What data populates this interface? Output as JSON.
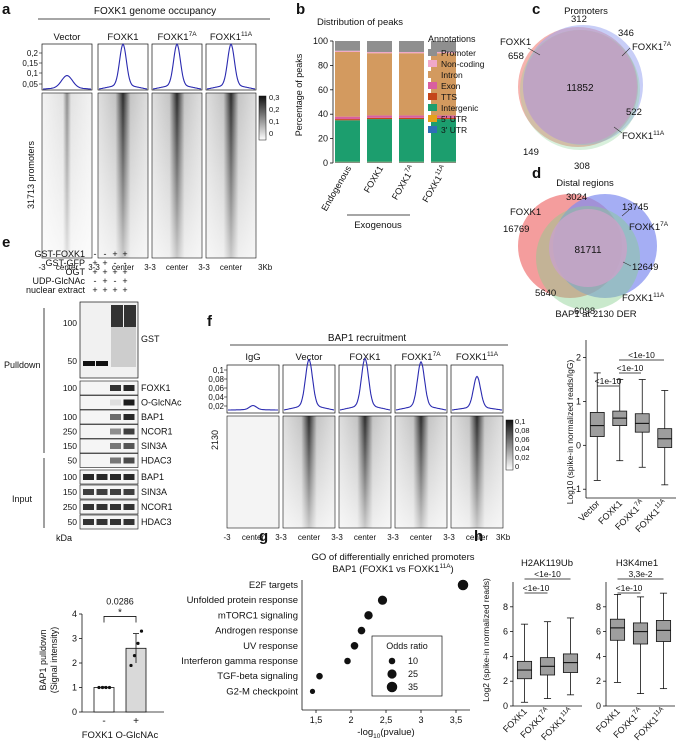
{
  "panels": {
    "a": {
      "letter": "a",
      "title": "FOXK1 genome occupancy",
      "conditions": [
        "Vector",
        "FOXK1",
        "FOXK1",
        "FOXK1"
      ],
      "condition_sups": [
        "",
        "",
        "7A",
        "11A"
      ],
      "profile_yticks": [
        "0,2",
        "0,15",
        "0,1",
        "0,05"
      ],
      "row_label": "31713 promoters",
      "x_start": "-3",
      "x_center": "center",
      "x_join": "3-3",
      "x_end": "3Kb",
      "colorbar_ticks": [
        "0,3",
        "0,2",
        "0,1",
        "0"
      ]
    },
    "b": {
      "letter": "b",
      "title": "Distribution of peaks",
      "ylabel": "Percentage of peaks",
      "yticks": [
        "100",
        "80",
        "60",
        "40",
        "20",
        "0"
      ],
      "group_label": "Exogenous",
      "legend_title": "Annotations"
    },
    "c": {
      "letter": "c",
      "title": "Promoters",
      "labels": {
        "a": "FOXK1",
        "b": "FOXK1",
        "b_sup": "7A",
        "c": "FOXK1",
        "c_sup": "11A"
      },
      "counts": [
        "312",
        "346",
        "658",
        "11852",
        "522",
        "149",
        "308"
      ]
    },
    "d": {
      "letter": "d",
      "title": "Distal regions",
      "labels": {
        "a": "FOXK1",
        "b": "FOXK1",
        "b_sup": "7A",
        "c": "FOXK1",
        "c_sup": "11A"
      },
      "counts": [
        "3024",
        "13745",
        "16769",
        "81711",
        "12649",
        "5640",
        "6098"
      ]
    },
    "e": {
      "letter": "e",
      "conditions": [
        "GST-FOXK1",
        "GST-GFP",
        "OGT",
        "UDP-GlcNAc",
        "nuclear extract"
      ],
      "signs": [
        [
          "-",
          "-",
          "+",
          "+"
        ],
        [
          "+",
          "+",
          "-",
          "-"
        ],
        [
          "+",
          "+",
          "+",
          "+"
        ],
        [
          "-",
          "+",
          "-",
          "+"
        ],
        [
          "+",
          "+",
          "+",
          "+"
        ]
      ],
      "pulldown_label": "Pulldown",
      "input_label": "Input",
      "kda": "kDa",
      "gst_markers": [
        "100",
        "50"
      ],
      "gst_label": "GST",
      "pulldown_blots": [
        {
          "marker": "100",
          "label": "FOXK1"
        },
        {
          "marker": "",
          "label": "O-GlcNAc"
        },
        {
          "marker": "100",
          "label": "BAP1"
        },
        {
          "marker": "250",
          "label": "NCOR1"
        },
        {
          "marker": "150",
          "label": "SIN3A"
        },
        {
          "marker": "50",
          "label": "HDAC3"
        }
      ],
      "input_blots": [
        {
          "marker": "100",
          "label": "BAP1"
        },
        {
          "marker": "150",
          "label": "SIN3A"
        },
        {
          "marker": "250",
          "label": "NCOR1"
        },
        {
          "marker": "50",
          "label": "HDAC3"
        }
      ],
      "quant": {
        "ylabel": "BAP1 pulldown",
        "ylabel2": "(Signal intensity)",
        "yticks": [
          "4",
          "3",
          "2",
          "1",
          "0"
        ],
        "xticks": [
          "-",
          "+"
        ],
        "xlabel": "FOXK1 O-GlcNAc",
        "pvalue": "0.0286",
        "star": "*"
      }
    },
    "f": {
      "letter": "f",
      "title": "BAP1 recruitment",
      "conditions": [
        "IgG",
        "Vector",
        "FOXK1",
        "FOXK1",
        "FOXK1"
      ],
      "condition_sups": [
        "",
        "",
        "",
        "7A",
        "11A"
      ],
      "profile_yticks": [
        "0,1",
        "0,08",
        "0,06",
        "0,04",
        "0,02"
      ],
      "row_label": "2130",
      "x_start": "-3",
      "x_center": "center",
      "x_join": "3-3",
      "x_end": "3Kb",
      "colorbar_ticks": [
        "0,1",
        "0,08",
        "0,06",
        "0,04",
        "0,02",
        "0"
      ]
    },
    "f_box": {
      "title": "BAP1 at 2130 DER",
      "ylabel": "Log10 (spike-in normalized reads/IgG)",
      "yticks": [
        "2",
        "1",
        "0",
        "-1"
      ],
      "xticks": [
        "Vector",
        "FOXK1",
        "FOXK1",
        "FOXK1"
      ],
      "xtick_sups": [
        "",
        "",
        "7A",
        "11A"
      ],
      "sig": [
        "<1e-10",
        "<1e-10",
        "<1e-10"
      ]
    },
    "g": {
      "letter": "g",
      "title": "GO of differentially enriched promoters",
      "subtitle": "BAP1 (FOXK1 vs FOXK1",
      "subtitle_sup": "11A",
      "subtitle_end": ")",
      "xlabel": "-log",
      "xlabel_sub": "10",
      "xlabel_end": "(pvalue)",
      "xticks": [
        "1,5",
        "2",
        "2,5",
        "3",
        "3,5"
      ],
      "legend_title": "Odds ratio",
      "legend_values": [
        "10",
        "25",
        "35"
      ]
    },
    "h": {
      "letter": "h",
      "left": {
        "title": "H2AK119Ub",
        "yticks": [
          "8",
          "6",
          "4",
          "2",
          "0"
        ],
        "sig": [
          "<1e-10",
          "<1e-10"
        ],
        "xticks": [
          "FOXK1",
          "FOXK1",
          "FOXK1"
        ],
        "xtick_sups": [
          "",
          "7A",
          "11A"
        ]
      },
      "right": {
        "title": "H3K4me1",
        "yticks": [
          "8",
          "6",
          "4",
          "2",
          "0"
        ],
        "sig": [
          "3,3e-2",
          "<1e-10"
        ],
        "xticks": [
          "FOXK1",
          "FOXK1",
          "FOXK1"
        ],
        "xtick_sups": [
          "",
          "7A",
          "11A"
        ]
      },
      "ylabel": "Log2 (spike-in normalized reads)"
    }
  },
  "chart_data": [
    {
      "id": "b-distribution-of-peaks",
      "type": "bar",
      "title": "Distribution of peaks",
      "xlabel": "",
      "ylabel": "Percentage of peaks",
      "ylim": [
        0,
        100
      ],
      "categories": [
        "Endogenous",
        "FOXK1",
        "FOXK1 7A",
        "FOXK1 11A"
      ],
      "stacked": true,
      "series": [
        {
          "name": "3' UTR",
          "color": "#2e6fb7",
          "values": [
            0.5,
            0.5,
            0.5,
            0.5
          ]
        },
        {
          "name": "5' UTR",
          "color": "#e3a21a",
          "values": [
            0.5,
            0.5,
            0.5,
            0.5
          ]
        },
        {
          "name": "Intergenic",
          "color": "#1c9e6e",
          "values": [
            34,
            35,
            35,
            35
          ]
        },
        {
          "name": "TTS",
          "color": "#c4461a",
          "values": [
            1,
            1,
            1,
            1
          ]
        },
        {
          "name": "Exon",
          "color": "#d95fa0",
          "values": [
            2,
            2,
            2,
            2
          ]
        },
        {
          "name": "Intron",
          "color": "#d39a5f",
          "values": [
            53,
            51,
            51,
            51
          ]
        },
        {
          "name": "Non-coding",
          "color": "#f0a8c8",
          "values": [
            1,
            1,
            1,
            1
          ]
        },
        {
          "name": "Promoter",
          "color": "#8f8f8f",
          "values": [
            8,
            9,
            9,
            9
          ]
        }
      ]
    },
    {
      "id": "e-bap1-pulldown",
      "type": "bar",
      "title": "",
      "xlabel": "FOXK1 O-GlcNAc",
      "ylabel": "BAP1 pulldown (Signal intensity)",
      "ylim": [
        0,
        4
      ],
      "categories": [
        "-",
        "+"
      ],
      "values": [
        1.0,
        2.6
      ],
      "errors": [
        0.03,
        0.6
      ],
      "points": [
        [
          1.0,
          1.0,
          1.0,
          1.0
        ],
        [
          1.9,
          2.3,
          2.8,
          3.3
        ]
      ]
    },
    {
      "id": "f-bap1-box",
      "type": "box",
      "title": "BAP1 at 2130 DER",
      "ylabel": "Log10 (spike-in normalized reads/IgG)",
      "ylim": [
        -1.2,
        2.4
      ],
      "categories": [
        "Vector",
        "FOXK1",
        "FOXK1 7A",
        "FOXK1 11A"
      ],
      "boxes": [
        {
          "min": -0.8,
          "q1": 0.2,
          "median": 0.45,
          "q3": 0.75,
          "max": 1.65
        },
        {
          "min": -0.35,
          "q1": 0.45,
          "median": 0.62,
          "q3": 0.78,
          "max": 1.5
        },
        {
          "min": -0.5,
          "q1": 0.3,
          "median": 0.5,
          "q3": 0.72,
          "max": 1.5
        },
        {
          "min": -0.9,
          "q1": -0.05,
          "median": 0.15,
          "q3": 0.38,
          "max": 1.25
        }
      ]
    },
    {
      "id": "g-go-enrichment",
      "type": "scatter",
      "title": "GO of differentially enriched promoters BAP1 (FOXK1 vs FOXK1 11A)",
      "xlabel": "-log10(pvalue)",
      "ylabel": "",
      "xlim": [
        1.3,
        3.7
      ],
      "categories": [
        "E2F targets",
        "Unfolded protein response",
        "mTORC1 signaling",
        "Androgen response",
        "UV response",
        "Interferon gamma response",
        "TGF-beta signaling",
        "G2-M checkpoint"
      ],
      "points": [
        {
          "term": "E2F targets",
          "x": 3.6,
          "odds": 35
        },
        {
          "term": "Unfolded protein response",
          "x": 2.45,
          "odds": 25
        },
        {
          "term": "mTORC1 signaling",
          "x": 2.25,
          "odds": 20
        },
        {
          "term": "Androgen response",
          "x": 2.15,
          "odds": 15
        },
        {
          "term": "UV response",
          "x": 2.05,
          "odds": 15
        },
        {
          "term": "Interferon gamma response",
          "x": 1.95,
          "odds": 10
        },
        {
          "term": "TGF-beta signaling",
          "x": 1.55,
          "odds": 10
        },
        {
          "term": "G2-M checkpoint",
          "x": 1.45,
          "odds": 5
        }
      ]
    },
    {
      "id": "h-h2ak119ub",
      "type": "box",
      "title": "H2AK119Ub",
      "ylabel": "Log2 (spike-in normalized reads)",
      "ylim": [
        0,
        10
      ],
      "categories": [
        "FOXK1",
        "FOXK1 7A",
        "FOXK1 11A"
      ],
      "boxes": [
        {
          "min": 0.3,
          "q1": 2.2,
          "median": 2.9,
          "q3": 3.6,
          "max": 6.6
        },
        {
          "min": 0.6,
          "q1": 2.5,
          "median": 3.2,
          "q3": 3.9,
          "max": 6.8
        },
        {
          "min": 0.9,
          "q1": 2.7,
          "median": 3.5,
          "q3": 4.2,
          "max": 7.1
        }
      ]
    },
    {
      "id": "h-h3k4me1",
      "type": "box",
      "title": "H3K4me1",
      "ylabel": "Log2 (spike-in normalized reads)",
      "ylim": [
        0,
        10
      ],
      "categories": [
        "FOXK1",
        "FOXK1 7A",
        "FOXK1 11A"
      ],
      "boxes": [
        {
          "min": 1.9,
          "q1": 5.3,
          "median": 6.3,
          "q3": 7.0,
          "max": 9.0
        },
        {
          "min": 1.0,
          "q1": 5.0,
          "median": 6.0,
          "q3": 6.7,
          "max": 8.8
        },
        {
          "min": 1.4,
          "q1": 5.2,
          "median": 6.1,
          "q3": 6.9,
          "max": 9.1
        }
      ]
    }
  ]
}
